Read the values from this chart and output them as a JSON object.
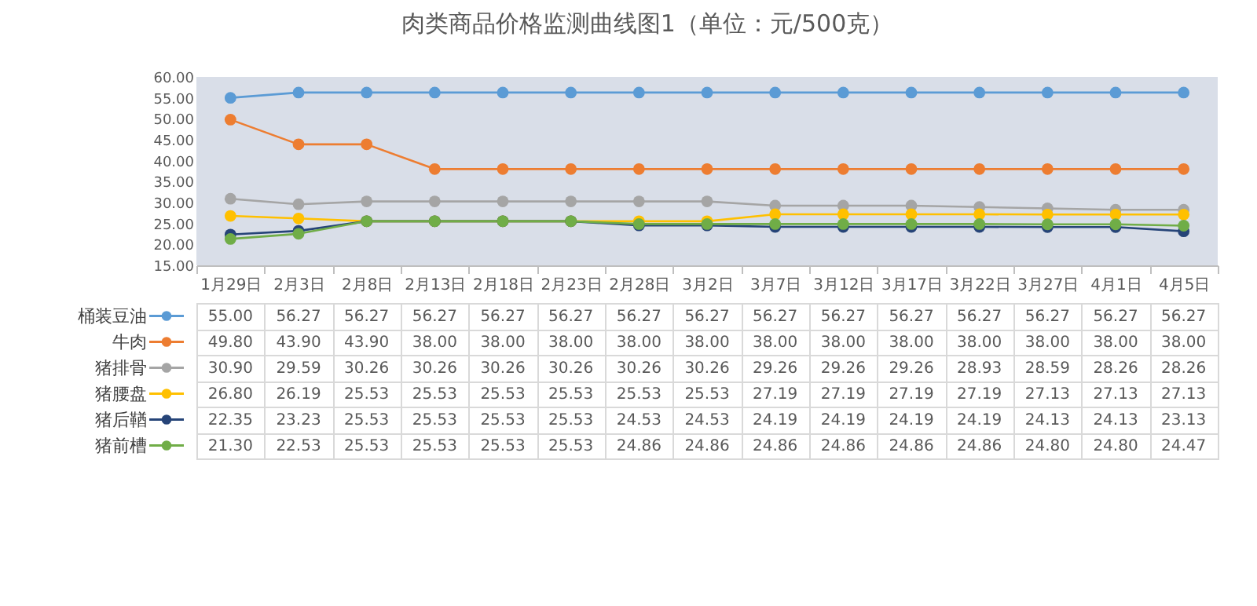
{
  "chart_data": {
    "type": "line",
    "title": "肉类商品价格监测曲线图1（单位：元/500克）",
    "categories": [
      "1月29日",
      "2月3日",
      "2月8日",
      "2月13日",
      "2月18日",
      "2月23日",
      "2月28日",
      "3月2日",
      "3月7日",
      "3月12日",
      "3月17日",
      "3月22日",
      "3月27日",
      "4月1日",
      "4月5日"
    ],
    "series": [
      {
        "name": "桶装豆油",
        "color": "#5b9bd5",
        "values": [
          55.0,
          56.27,
          56.27,
          56.27,
          56.27,
          56.27,
          56.27,
          56.27,
          56.27,
          56.27,
          56.27,
          56.27,
          56.27,
          56.27,
          56.27
        ],
        "value_labels": [
          "55.00",
          "56.27",
          "56.27",
          "56.27",
          "56.27",
          "56.27",
          "56.27",
          "56.27",
          "56.27",
          "56.27",
          "56.27",
          "56.27",
          "56.27",
          "56.27",
          "56.27"
        ]
      },
      {
        "name": "牛肉",
        "color": "#ed7d31",
        "values": [
          49.8,
          43.9,
          43.9,
          38.0,
          38.0,
          38.0,
          38.0,
          38.0,
          38.0,
          38.0,
          38.0,
          38.0,
          38.0,
          38.0,
          38.0
        ],
        "value_labels": [
          "49.80",
          "43.90",
          "43.90",
          "38.00",
          "38.00",
          "38.00",
          "38.00",
          "38.00",
          "38.00",
          "38.00",
          "38.00",
          "38.00",
          "38.00",
          "38.00",
          "38.00"
        ]
      },
      {
        "name": "猪排骨",
        "color": "#a5a5a5",
        "values": [
          30.9,
          29.59,
          30.26,
          30.26,
          30.26,
          30.26,
          30.26,
          30.26,
          29.26,
          29.26,
          29.26,
          28.93,
          28.59,
          28.26,
          28.26
        ],
        "value_labels": [
          "30.90",
          "29.59",
          "30.26",
          "30.26",
          "30.26",
          "30.26",
          "30.26",
          "30.26",
          "29.26",
          "29.26",
          "29.26",
          "28.93",
          "28.59",
          "28.26",
          "28.26"
        ]
      },
      {
        "name": "猪腰盘",
        "color": "#ffc000",
        "values": [
          26.8,
          26.19,
          25.53,
          25.53,
          25.53,
          25.53,
          25.53,
          25.53,
          27.19,
          27.19,
          27.19,
          27.19,
          27.13,
          27.13,
          27.13
        ],
        "value_labels": [
          "26.80",
          "26.19",
          "25.53",
          "25.53",
          "25.53",
          "25.53",
          "25.53",
          "25.53",
          "27.19",
          "27.19",
          "27.19",
          "27.19",
          "27.13",
          "27.13",
          "27.13"
        ]
      },
      {
        "name": "猪后鞧",
        "color": "#264478",
        "values": [
          22.35,
          23.23,
          25.53,
          25.53,
          25.53,
          25.53,
          24.53,
          24.53,
          24.19,
          24.19,
          24.19,
          24.19,
          24.13,
          24.13,
          23.13
        ],
        "value_labels": [
          "22.35",
          "23.23",
          "25.53",
          "25.53",
          "25.53",
          "25.53",
          "24.53",
          "24.53",
          "24.19",
          "24.19",
          "24.19",
          "24.19",
          "24.13",
          "24.13",
          "23.13"
        ]
      },
      {
        "name": "猪前槽",
        "color": "#70ad47",
        "values": [
          21.3,
          22.53,
          25.53,
          25.53,
          25.53,
          25.53,
          24.86,
          24.86,
          24.86,
          24.86,
          24.86,
          24.86,
          24.8,
          24.8,
          24.47
        ],
        "value_labels": [
          "21.30",
          "22.53",
          "25.53",
          "25.53",
          "25.53",
          "25.53",
          "24.86",
          "24.86",
          "24.86",
          "24.86",
          "24.86",
          "24.86",
          "24.80",
          "24.80",
          "24.47"
        ]
      }
    ],
    "ylim": [
      15,
      60
    ],
    "yticks": [
      {
        "value": 15,
        "label": "15.00"
      },
      {
        "value": 20,
        "label": "20.00"
      },
      {
        "value": 25,
        "label": "25.00"
      },
      {
        "value": 30,
        "label": "30.00"
      },
      {
        "value": 35,
        "label": "35.00"
      },
      {
        "value": 40,
        "label": "40.00"
      },
      {
        "value": 45,
        "label": "45.00"
      },
      {
        "value": 50,
        "label": "50.00"
      },
      {
        "value": 55,
        "label": "55.00"
      },
      {
        "value": 60,
        "label": "60.00"
      }
    ],
    "grid": false,
    "legend": "left",
    "marker": "circle",
    "line_style": "solid"
  }
}
